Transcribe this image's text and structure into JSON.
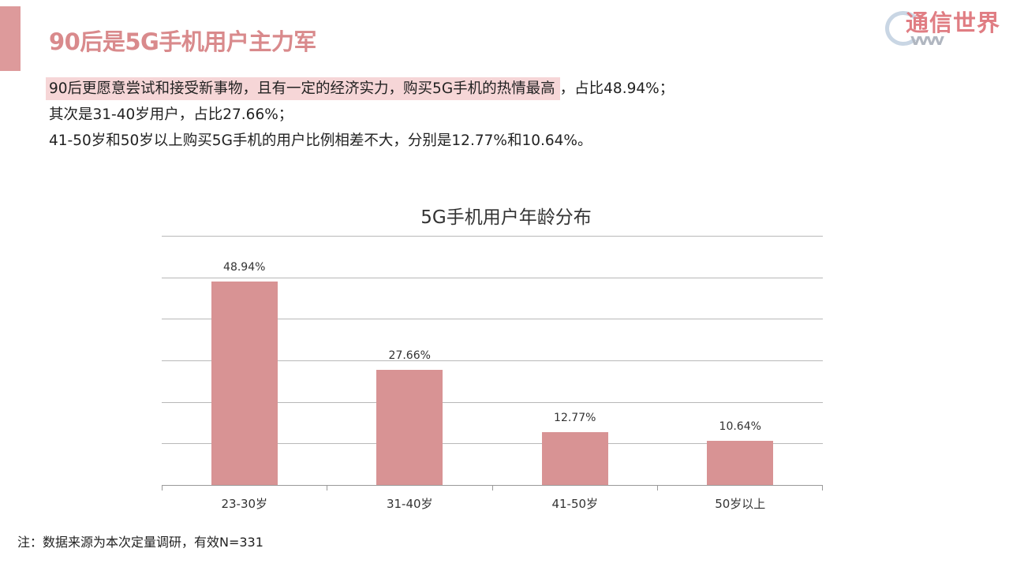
{
  "header": {
    "title": "90后是5G手机用户主力军",
    "logo_text": "通信世界",
    "accent_color": "#dd9a9b"
  },
  "summary": {
    "line1_highlight": "90后更愿意尝试和接受新事物，且有一定的经济实力，购买5G手机的热情最高",
    "line1_rest": "，占比48.94%；",
    "line2": "其次是31-40岁用户，占比27.66%；",
    "line3": "41-50岁和50岁以上购买5G手机的用户比例相差不大，分别是12.77%和10.64%。"
  },
  "chart_data": {
    "type": "bar",
    "title": "5G手机用户年龄分布",
    "categories": [
      "23-30岁",
      "31-40岁",
      "41-50岁",
      "50岁以上"
    ],
    "values": [
      48.94,
      27.66,
      12.77,
      10.64
    ],
    "data_labels": [
      "48.94%",
      "27.66%",
      "12.77%",
      "10.64%"
    ],
    "xlabel": "",
    "ylabel": "",
    "ylim": [
      0,
      60
    ],
    "grid": true,
    "y_axis_visible": false,
    "legend": "none",
    "bar_color": "#d89394"
  },
  "footnote": "注：数据来源为本次定量调研，有效N=331"
}
